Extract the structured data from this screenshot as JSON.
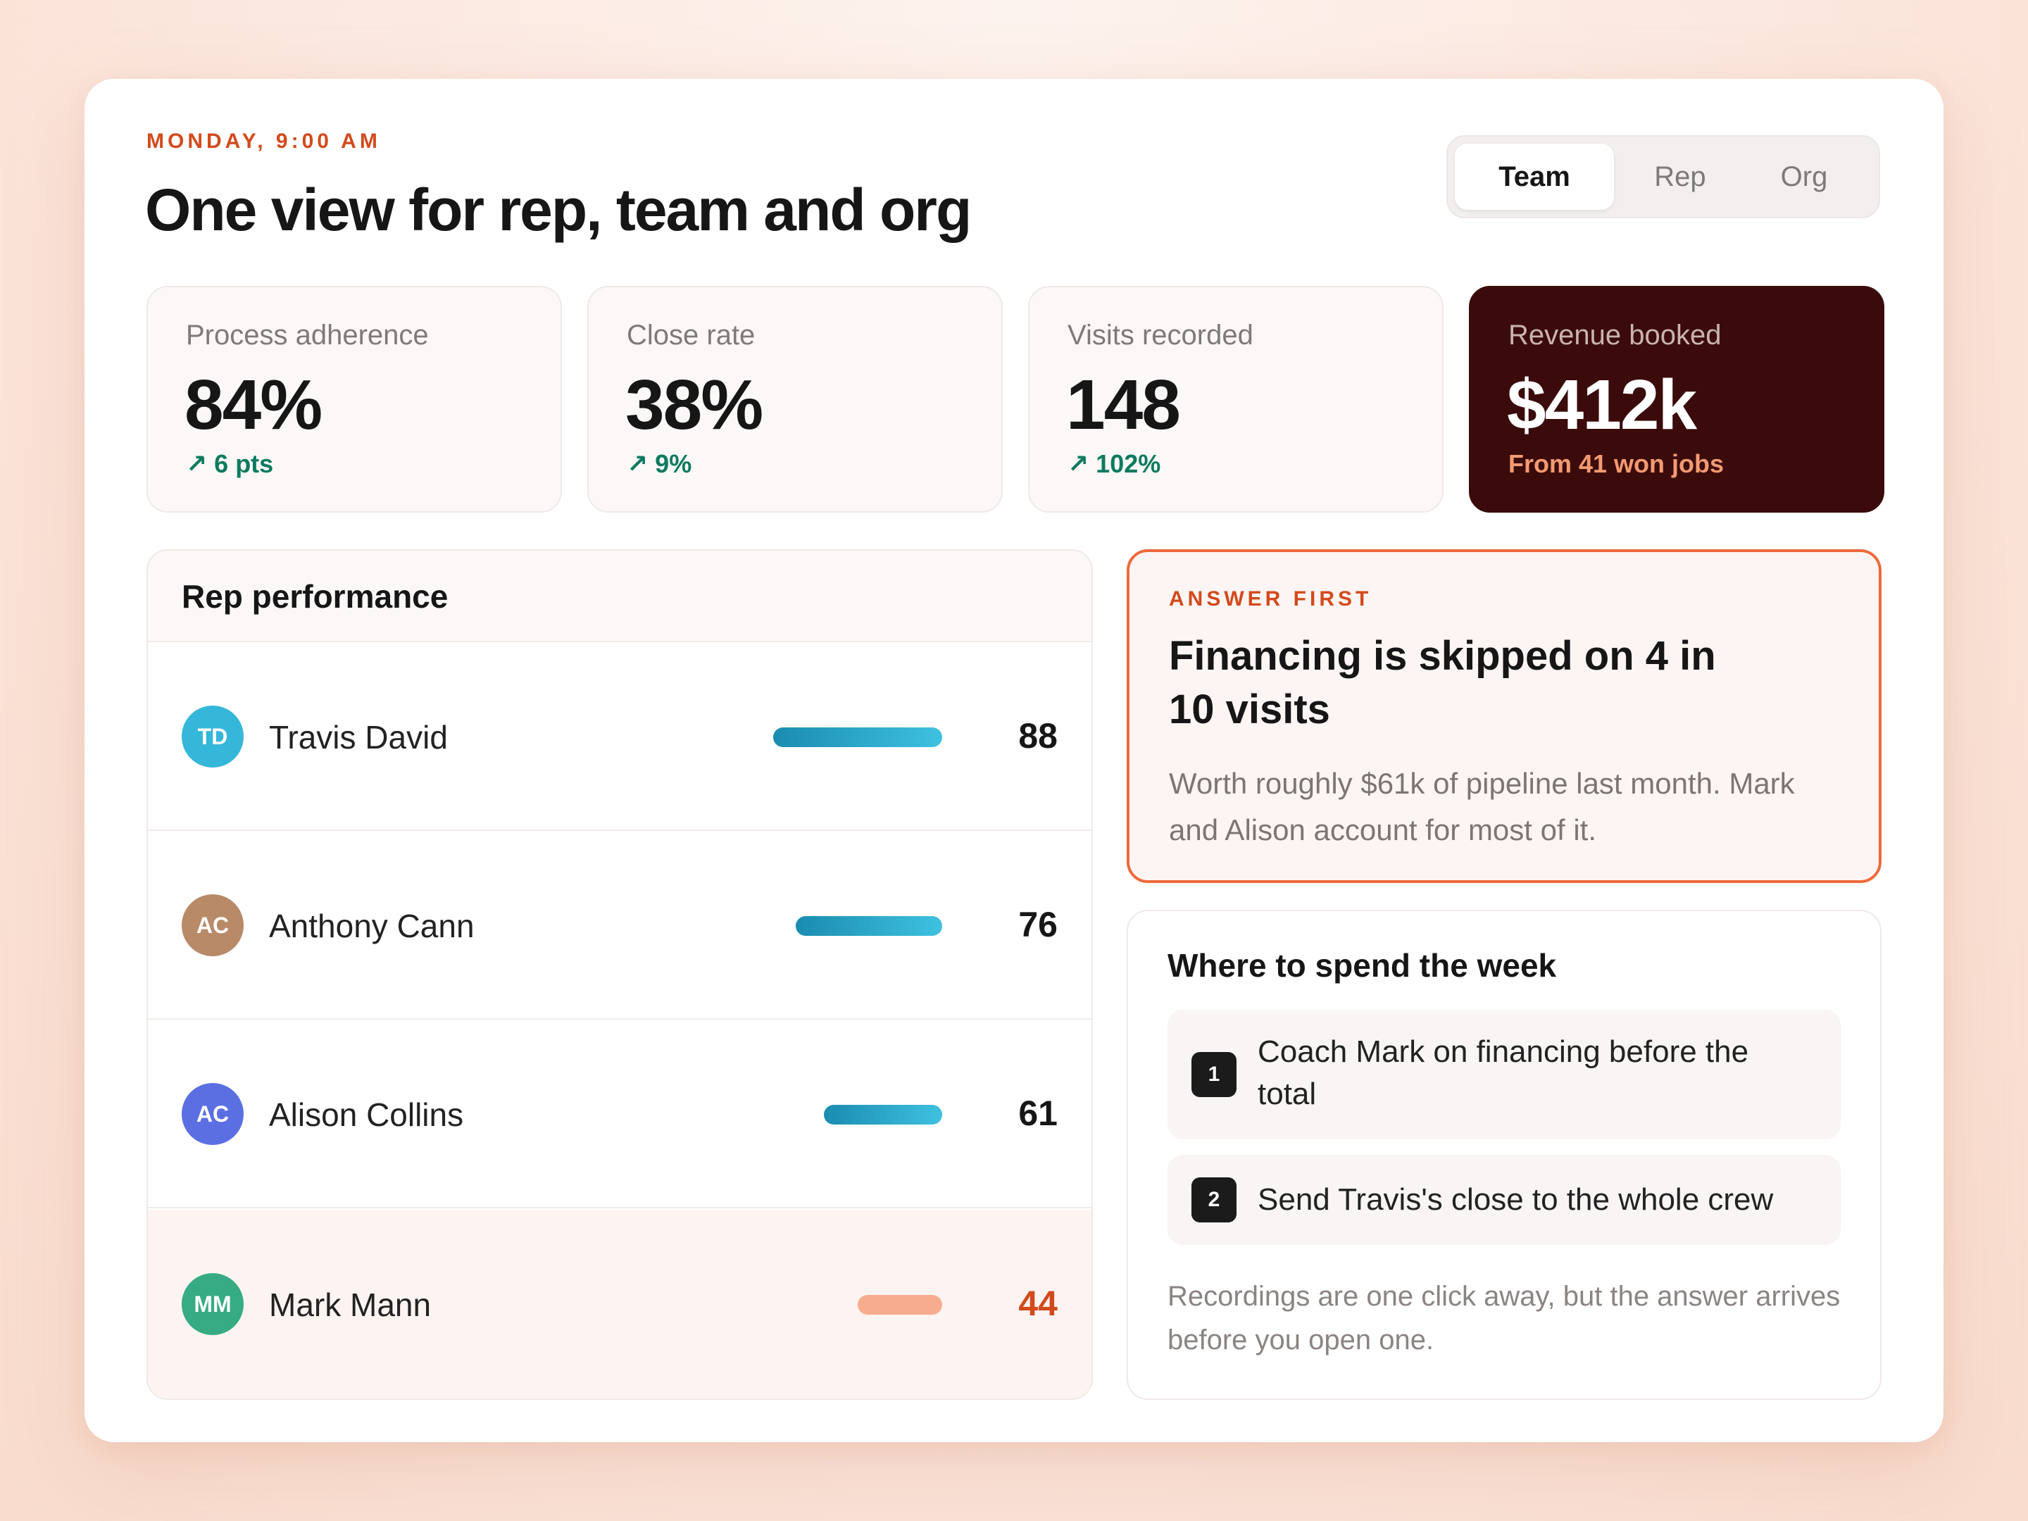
{
  "header": {
    "eyebrow": "MONDAY, 9:00 AM",
    "title": "One view for rep, team and org"
  },
  "view_toggle": {
    "options": [
      "Team",
      "Rep",
      "Org"
    ],
    "selected": "Team"
  },
  "stats": [
    {
      "label": "Process adherence",
      "value": "84%",
      "delta": "↗ 6 pts"
    },
    {
      "label": "Close rate",
      "value": "38%",
      "delta": "↗ 9%"
    },
    {
      "label": "Visits recorded",
      "value": "148",
      "delta": "↗ 102%"
    },
    {
      "label": "Revenue booked",
      "value": "$412k",
      "delta": "From 41 won jobs"
    }
  ],
  "rep_performance": {
    "title": "Rep performance",
    "reps": [
      {
        "initials": "TD",
        "name": "Travis David",
        "score": "88",
        "avatar_color": "#35b7d9"
      },
      {
        "initials": "AC",
        "name": "Anthony Cann",
        "score": "76",
        "avatar_color": "#b88a68"
      },
      {
        "initials": "AC",
        "name": "Alison Collins",
        "score": "61",
        "avatar_color": "#5b6fe3"
      },
      {
        "initials": "MM",
        "name": "Mark Mann",
        "score": "44",
        "avatar_color": "#36ab84"
      }
    ]
  },
  "answer": {
    "eyebrow": "ANSWER FIRST",
    "title": "Financing is skipped on 4 in 10 visits",
    "body": "Worth roughly $61k of pipeline last month. Mark and Alison account for most of it."
  },
  "week": {
    "title": "Where to spend the week",
    "tasks": [
      {
        "num": "1",
        "text": "Coach Mark on financing before the total"
      },
      {
        "num": "2",
        "text": "Send Travis's close to the whole crew"
      }
    ],
    "footer": "Recordings are one click away, but the answer arrives before you open one."
  },
  "colors": {
    "accent": "#d24a1c",
    "positive": "#0d7a5f",
    "dark_card": "#3b0b0b",
    "bar_gradient_start": "#1a8cb0",
    "bar_gradient_end": "#3fc1e0",
    "bar_warn": "#f8ac8e"
  }
}
